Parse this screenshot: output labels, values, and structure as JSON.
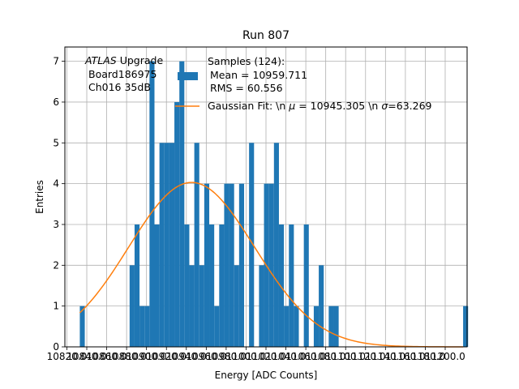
{
  "chart_data": {
    "type": "bar",
    "title": "Run 807",
    "xlabel": "Energy [ADC Counts]",
    "ylabel": "Entries",
    "xlim": [
      10818,
      11222
    ],
    "ylim": [
      0,
      7.35
    ],
    "grid": true,
    "bin_width": 5,
    "x_ticks": [
      10820,
      10840,
      10860,
      10880,
      10900,
      10920,
      10940,
      10960,
      10980,
      11000,
      11020,
      11040,
      11060,
      11080,
      11100,
      11120,
      11140,
      11160,
      11180,
      11200
    ],
    "x_tick_labels": [
      "10820.0",
      "10840.0",
      "10860.0",
      "10880.0",
      "10900.0",
      "10920.0",
      "10940.0",
      "10960.0",
      "10980.0",
      "11000.0",
      "11020.0",
      "11040.0",
      "11060.0",
      "11080.0",
      "11100.0",
      "11120.0",
      "11140.0",
      "11160.0",
      "11180.0",
      "11200.0"
    ],
    "y_ticks": [
      0,
      1,
      2,
      3,
      4,
      5,
      6,
      7
    ],
    "histogram": {
      "bin_starts": [
        10833,
        10883,
        10888,
        10893,
        10898,
        10903,
        10908,
        10913,
        10918,
        10923,
        10928,
        10933,
        10938,
        10943,
        10948,
        10953,
        10958,
        10963,
        10968,
        10973,
        10978,
        10983,
        10988,
        10993,
        10998,
        11003,
        11008,
        11013,
        11018,
        11023,
        11028,
        11033,
        11038,
        11043,
        11048,
        11058,
        11068,
        11073,
        11083,
        11088,
        11218
      ],
      "values": [
        1,
        2,
        3,
        1,
        1,
        7,
        3,
        5,
        5,
        5,
        6,
        7,
        3,
        2,
        5,
        2,
        4,
        3,
        1,
        3,
        4,
        4,
        2,
        4,
        0,
        5,
        0,
        2,
        4,
        4,
        5,
        3,
        1,
        3,
        1,
        3,
        1,
        2,
        1,
        1,
        1
      ]
    },
    "fit_curve": {
      "mu": 10945.305,
      "sigma": 63.269,
      "amplitude": 4.03,
      "x_range": [
        10833,
        11218
      ]
    },
    "colors": {
      "hist": "#1f77b4",
      "fit": "#ff7f0e",
      "grid": "#b0b0b0"
    }
  },
  "annotation": {
    "atlas_italic": "ATLAS",
    "atlas_rest": " Upgrade",
    "board": "Board186975",
    "channel": "Ch016 35dB"
  },
  "legend": {
    "hist_line1": "Samples (124):",
    "hist_line2": "Mean = 10959.711",
    "hist_line3": "RMS = 60.556",
    "fit_prefix": "Gaussian Fit: \\n ",
    "fit_mu_symbol": "μ",
    "fit_mid": " = 10945.305 \\n ",
    "fit_sigma_symbol": "σ",
    "fit_suffix": "=63.269"
  }
}
